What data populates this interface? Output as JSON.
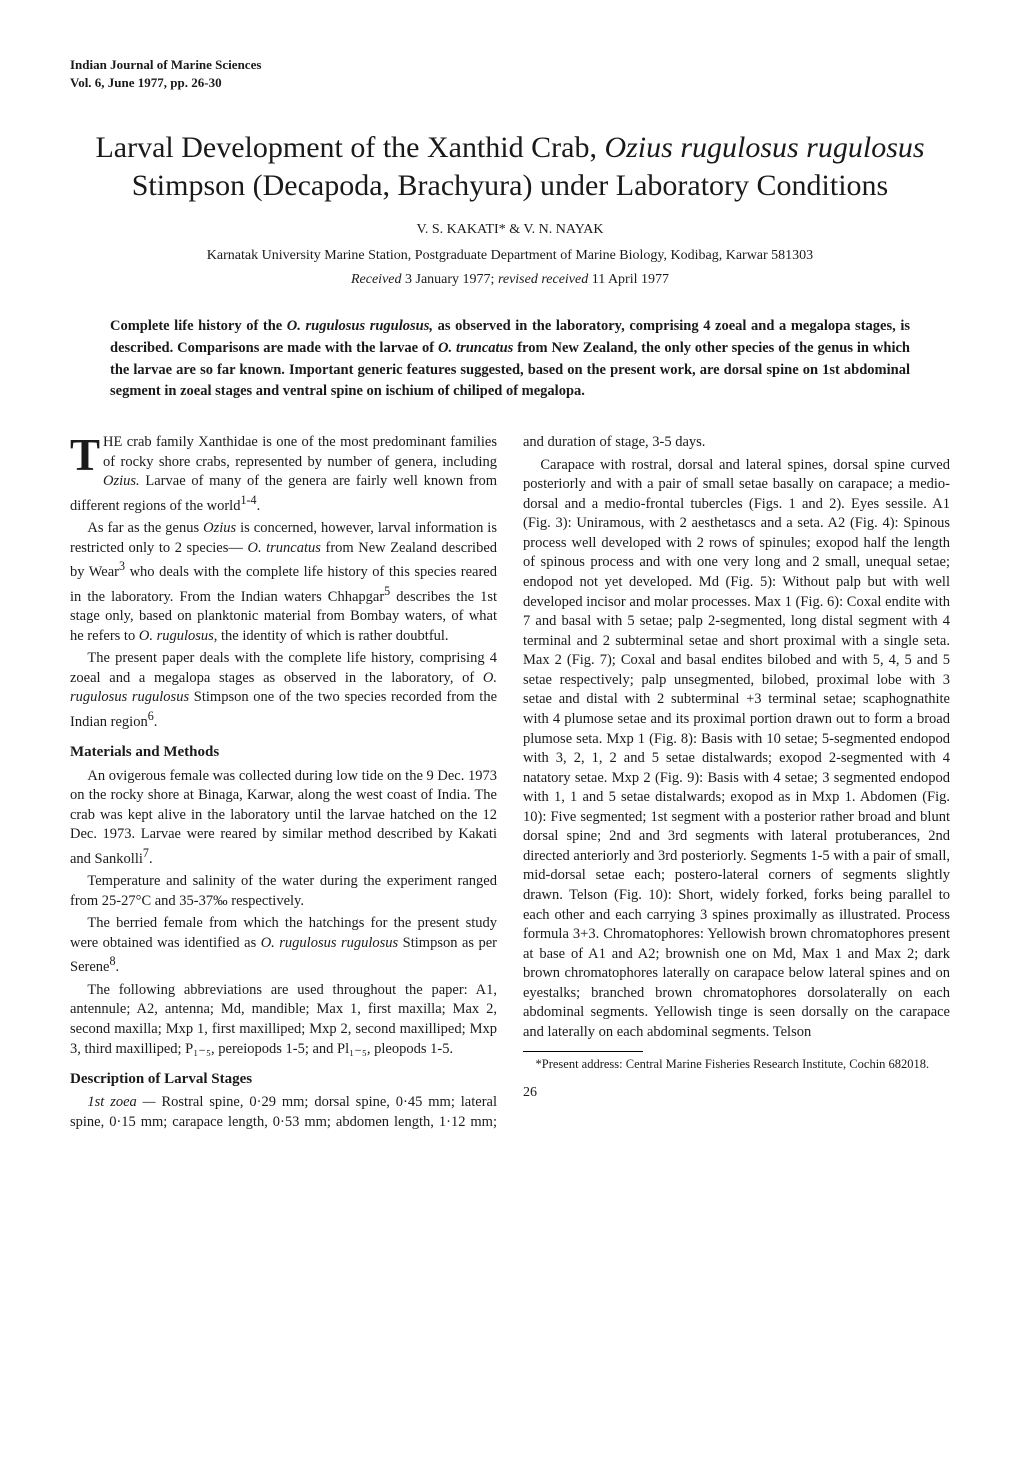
{
  "journal": {
    "line1": "Indian Journal of Marine Sciences",
    "line2": "Vol. 6, June 1977, pp. 26-30"
  },
  "title_plain1": "Larval Development of the Xanthid Crab, ",
  "title_italic": "Ozius rugulosus rugulosus",
  "title_plain2": " Stimpson (Decapoda, Brachyura) under Laboratory Conditions",
  "authors": "V. S. KAKATI* & V. N. NAYAK",
  "affiliation": "Karnatak University Marine Station, Postgraduate Department of Marine Biology, Kodibag, Karwar 581303",
  "dates_pre": "Received ",
  "dates_d1": "3 January 1977; ",
  "dates_mid": "revised received ",
  "dates_d2": "11 April 1977",
  "abstract_p1a": "Complete life history of the ",
  "abstract_i1": "O. rugulosus rugulosus,",
  "abstract_p1b": " as observed in the laboratory, comprising 4 zoeal and a megalopa stages, is described. Comparisons are made with the larvae of ",
  "abstract_i2": "O. truncatus",
  "abstract_p1c": " from New Zealand, the only other species of the genus in which the larvae are so far known. Important generic features suggested, based on the present work, are dorsal spine on 1st abdominal segment in zoeal stages and ventral spine on ischium of chiliped of megalopa.",
  "intro_dropcap": "T",
  "intro_p1a": "HE crab family Xanthidae is one of the most predominant families of rocky shore crabs, represented by number of genera, including ",
  "intro_i1": "Ozius.",
  "intro_p1b": " Larvae of many of the genera are fairly well known from different regions of the world",
  "intro_sup1": "1-4",
  "intro_p1c": ".",
  "intro_p2a": "As far as the genus ",
  "intro_i2": "Ozius",
  "intro_p2b": " is concerned, however, larval information is restricted only to 2 species— ",
  "intro_i3": "O. truncatus",
  "intro_p2c": " from New Zealand described by Wear",
  "intro_sup2": "3",
  "intro_p2d": " who deals with the complete life history of this species reared in the laboratory. From the Indian waters Chhapgar",
  "intro_sup3": "5",
  "intro_p2e": " describes the 1st stage only, based on planktonic material from Bombay waters, of what he refers to ",
  "intro_i4": "O. rugulosus,",
  "intro_p2f": " the identity of which is rather doubtful.",
  "intro_p3a": "The present paper deals with the complete life history, comprising 4 zoeal and a megalopa stages as observed in the laboratory, of ",
  "intro_i5": "O. rugulosus rugulosus",
  "intro_p3b": " Stimpson one of the two species recorded from the Indian region",
  "intro_sup4": "6",
  "intro_p3c": ".",
  "heading_mm": "Materials and Methods",
  "mm_p1": "An ovigerous female was collected during low tide on the 9 Dec. 1973 on the rocky shore at Binaga, Karwar, along the west coast of India. The crab was kept alive in the laboratory until the larvae hatched on the 12 Dec. 1973. Larvae were reared by similar method described by Kakati and Sankolli",
  "mm_sup1": "7",
  "mm_p1b": ".",
  "mm_p2": "Temperature and salinity of the water during the experiment ranged from 25-27°C and 35-37‰ respectively.",
  "mm_p3a": "The berried female from which the hatchings for the present study were obtained was identified as ",
  "mm_i1": "O. rugulosus rugulosus",
  "mm_p3b": " Stimpson as per Serene",
  "mm_sup2": "8",
  "mm_p3c": ".",
  "mm_p4": "The following abbreviations are used throughout the paper: A1, antennule; A2, antenna; Md, mandible; Max 1, first maxilla; Max 2, second maxilla; Mxp 1, first maxilliped; Mxp 2, second maxilliped; Mxp 3, third maxilliped; P₁₋₅, pereiopods 1-5; and Pl₁₋₅, pleopods 1-5.",
  "heading_desc": "Description of Larval Stages",
  "desc_i1": "1st zoea —",
  "desc_p1": " Rostral spine, 0·29 mm; dorsal spine, 0·45 mm; lateral spine, 0·15 mm; carapace length, 0·53 mm; abdomen length, 1·12 mm; and duration of stage, 3-5 days.",
  "desc_p2": "Carapace with rostral, dorsal and lateral spines, dorsal spine curved posteriorly and with a pair of small setae basally on carapace; a medio-dorsal and a medio-frontal tubercles (Figs. 1 and 2). Eyes sessile. A1 (Fig. 3): Uniramous, with 2 aesthetascs and a seta. A2 (Fig. 4): Spinous process well developed with 2 rows of spinules; exopod half the length of spinous process and with one very long and 2 small, unequal setae; endopod not yet developed. Md (Fig. 5): Without palp but with well developed incisor and molar processes. Max 1 (Fig. 6): Coxal endite with 7 and basal with 5 setae; palp 2-segmented, long distal segment with 4 terminal and 2 subterminal setae and short proximal with a single seta. Max 2 (Fig. 7); Coxal and basal endites bilobed and with 5, 4, 5 and 5 setae respectively; palp unsegmented, bilobed, proximal lobe with 3 setae and distal with 2 subterminal +3 terminal setae; scaphognathite with 4 plumose setae and its proximal portion drawn out to form a broad plumose seta. Mxp 1 (Fig. 8): Basis with 10 setae; 5-segmented endopod with 3, 2, 1, 2 and 5 setae distalwards; exopod 2-segmented with 4 natatory setae. Mxp 2 (Fig. 9): Basis with 4 setae; 3 segmented endopod with 1, 1 and 5 setae distalwards; exopod as in Mxp 1. Abdomen (Fig. 10): Five segmented; 1st segment with a posterior rather broad and blunt dorsal spine; 2nd and 3rd segments with lateral protuberances, 2nd directed anteriorly and 3rd posteriorly. Segments 1-5 with a pair of small, mid-dorsal setae each; postero-lateral corners of segments slightly drawn. Telson (Fig. 10): Short, widely forked, forks being parallel to each other and each carrying 3 spines proximally as illustrated. Process formula 3+3. Chromatophores: Yellowish brown chromatophores present at base of A1 and A2; brownish one on Md, Max 1 and Max 2; dark brown chromatophores laterally on carapace below lateral spines and on eyestalks; branched brown chromatophores dorsolaterally on each abdominal segments. Yellowish tinge is seen dorsally on the carapace and laterally on each abdominal segments. Telson",
  "footnote": "*Present address: Central Marine Fisheries Research Institute, Cochin 682018.",
  "page_number": "26"
}
